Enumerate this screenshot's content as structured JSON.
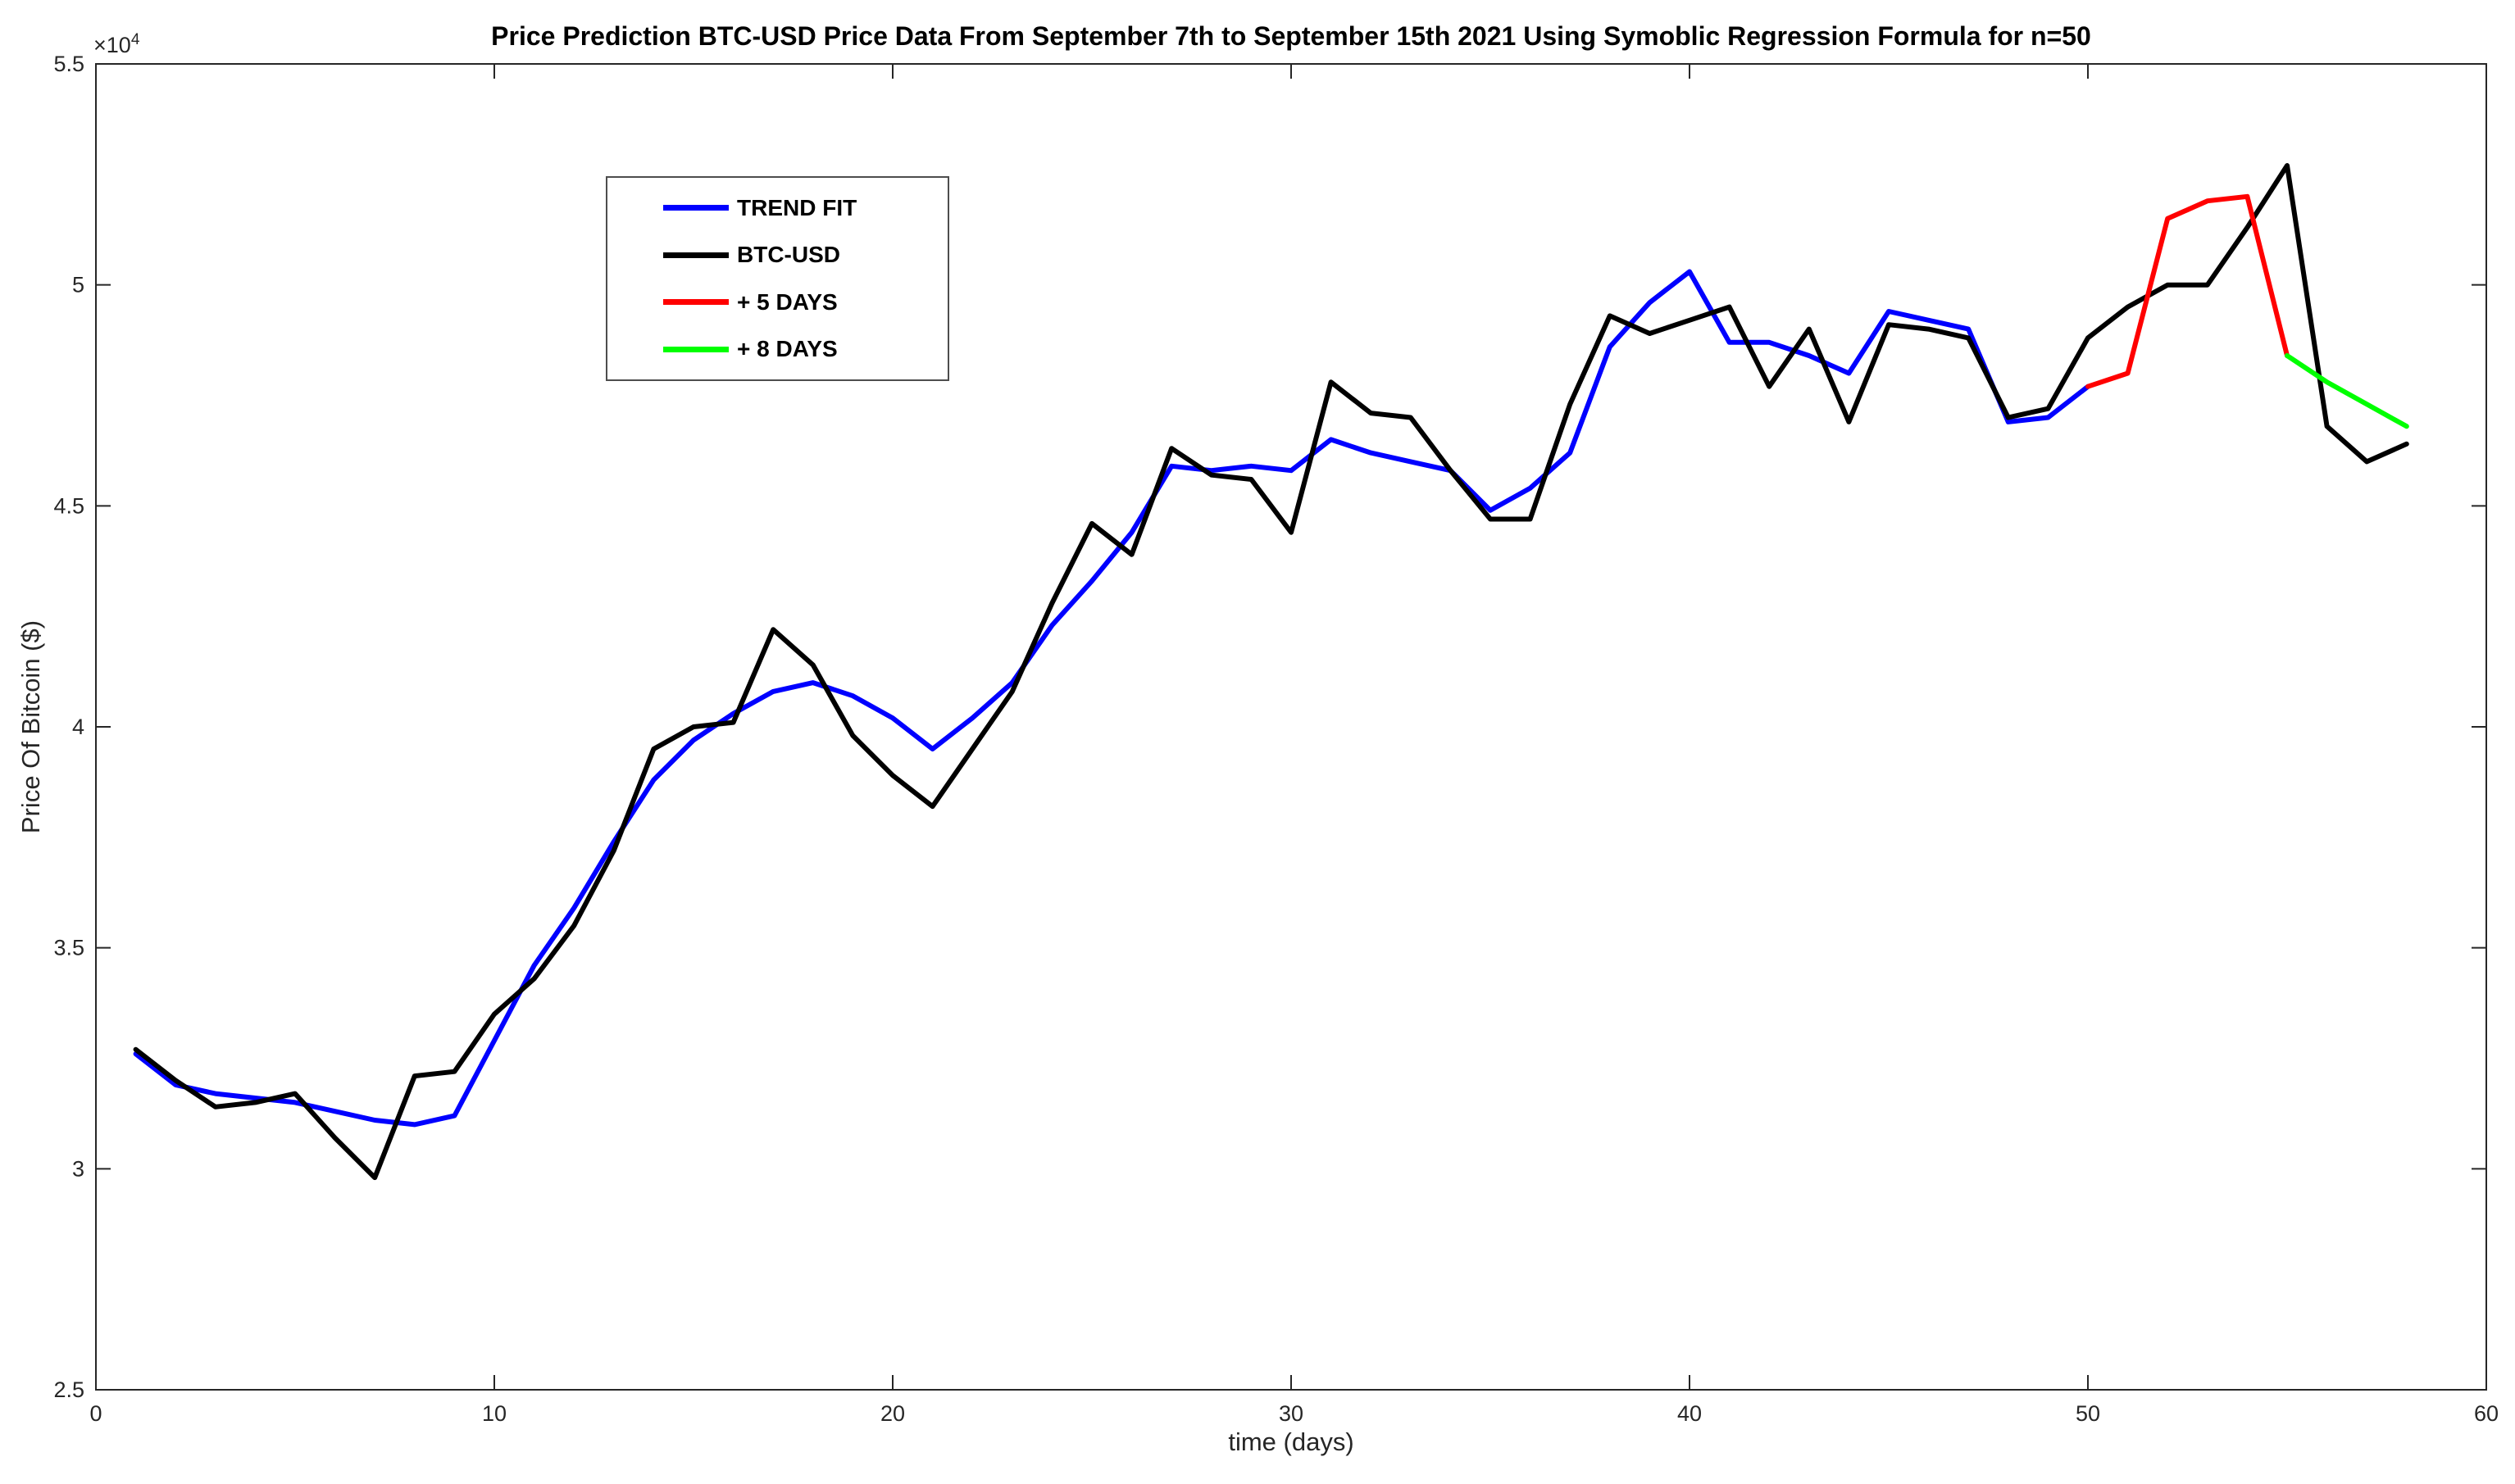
{
  "figure": {
    "title": "Price Prediction BTC-USD Price Data From September 7th to September 15th 2021 Using Symoblic Regression Formula for n=50",
    "x_axis_label": "time (days)",
    "y_axis_label": "Price Of Bitcoin ($)",
    "y_exponent_base": "×10",
    "y_exponent_power": "4"
  },
  "chart_data": {
    "type": "line",
    "title": "Price Prediction BTC-USD Price Data From September 7th to September 15th 2021 Using Symoblic Regression Formula for n=50",
    "xlabel": "time (days)",
    "ylabel": "Price Of Bitcoin ($)",
    "y_unit_note": "values are in units of 10^4 USD (axis exponent ×10⁴)",
    "xlim": [
      0,
      60
    ],
    "ylim": [
      2.5,
      5.5
    ],
    "xticks": [
      0,
      10,
      20,
      30,
      40,
      50,
      60
    ],
    "xtick_labels": [
      "0",
      "10",
      "20",
      "30",
      "40",
      "50",
      "60"
    ],
    "yticks": [
      2.5,
      3,
      3.5,
      4,
      4.5,
      5,
      5.5
    ],
    "ytick_labels": [
      "2.5",
      "3",
      "3.5",
      "4",
      "4.5",
      "5",
      "5.5"
    ],
    "grid": false,
    "legend_position": "upper-left-inside",
    "series": [
      {
        "name": "TREND FIT",
        "color": "#0000FF",
        "x_start": 1,
        "x_step": 1,
        "values": [
          3.26,
          3.19,
          3.17,
          3.16,
          3.15,
          3.13,
          3.11,
          3.1,
          3.12,
          3.29,
          3.46,
          3.59,
          3.74,
          3.88,
          3.97,
          4.03,
          4.08,
          4.1,
          4.07,
          4.02,
          3.95,
          4.02,
          4.1,
          4.23,
          4.33,
          4.44,
          4.59,
          4.58,
          4.59,
          4.58,
          4.65,
          4.62,
          4.6,
          4.58,
          4.49,
          4.54,
          4.62,
          4.86,
          4.96,
          5.03,
          4.87,
          4.87,
          4.84,
          4.8,
          4.94,
          4.92,
          4.9,
          4.69,
          4.7,
          4.77
        ]
      },
      {
        "name": "BTC-USD",
        "color": "#000000",
        "x_start": 1,
        "x_step": 1,
        "values": [
          3.27,
          3.2,
          3.14,
          3.15,
          3.17,
          3.07,
          2.98,
          3.21,
          3.22,
          3.35,
          3.43,
          3.55,
          3.72,
          3.95,
          4.0,
          4.01,
          4.22,
          4.14,
          3.98,
          3.89,
          3.82,
          3.95,
          4.08,
          4.28,
          4.46,
          4.39,
          4.63,
          4.57,
          4.56,
          4.44,
          4.78,
          4.71,
          4.7,
          4.58,
          4.47,
          4.47,
          4.73,
          4.93,
          4.89,
          4.92,
          4.95,
          4.77,
          4.9,
          4.69,
          4.91,
          4.9,
          4.88,
          4.7,
          4.72,
          4.88,
          4.95,
          5.0,
          5.0,
          5.13,
          5.27,
          4.68,
          4.6,
          4.64
        ]
      },
      {
        "name": "+ 5 DAYS",
        "color": "#FF0000",
        "x_start": 50,
        "x_step": 1,
        "values": [
          4.77,
          4.8,
          5.15,
          5.19,
          5.2,
          4.84
        ]
      },
      {
        "name": "+ 8 DAYS",
        "color": "#00FF00",
        "x_start": 55,
        "x_step": 1,
        "values": [
          4.84,
          4.78,
          4.73,
          4.68
        ]
      }
    ]
  }
}
